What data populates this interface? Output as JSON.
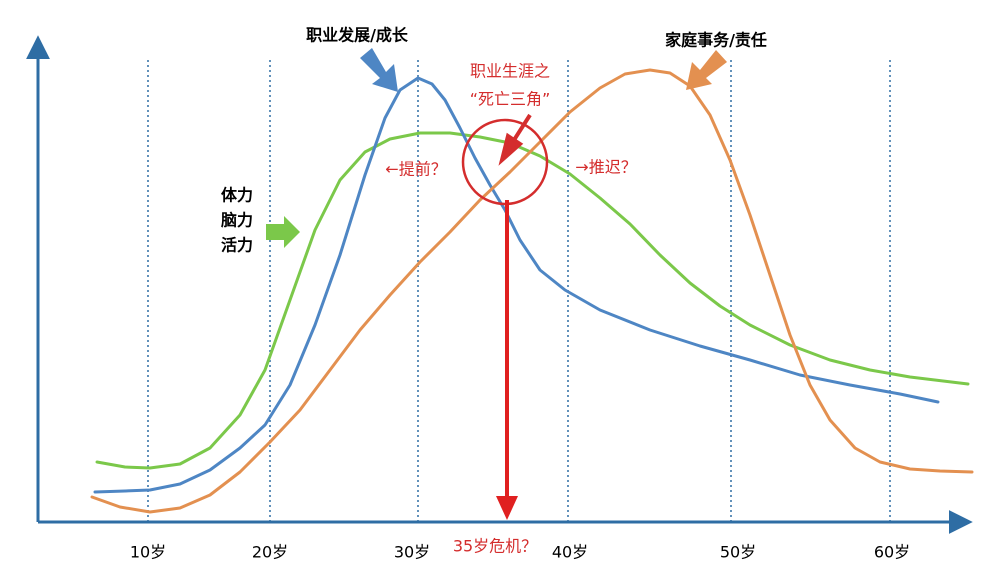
{
  "labels": {
    "career": "职业发展/成长",
    "family": "家庭事务/责任",
    "triangle_1": "职业生涯之",
    "triangle_2": "“死亡三角”",
    "earlier": "←提前？",
    "later": "→推迟？",
    "energy": [
      "体力",
      "脑力",
      "活力"
    ],
    "crisis": "35岁危机？"
  },
  "x_axis": {
    "ticks": [
      "10岁",
      "20岁",
      "30岁",
      "40岁",
      "50岁",
      "60岁"
    ]
  }
}
